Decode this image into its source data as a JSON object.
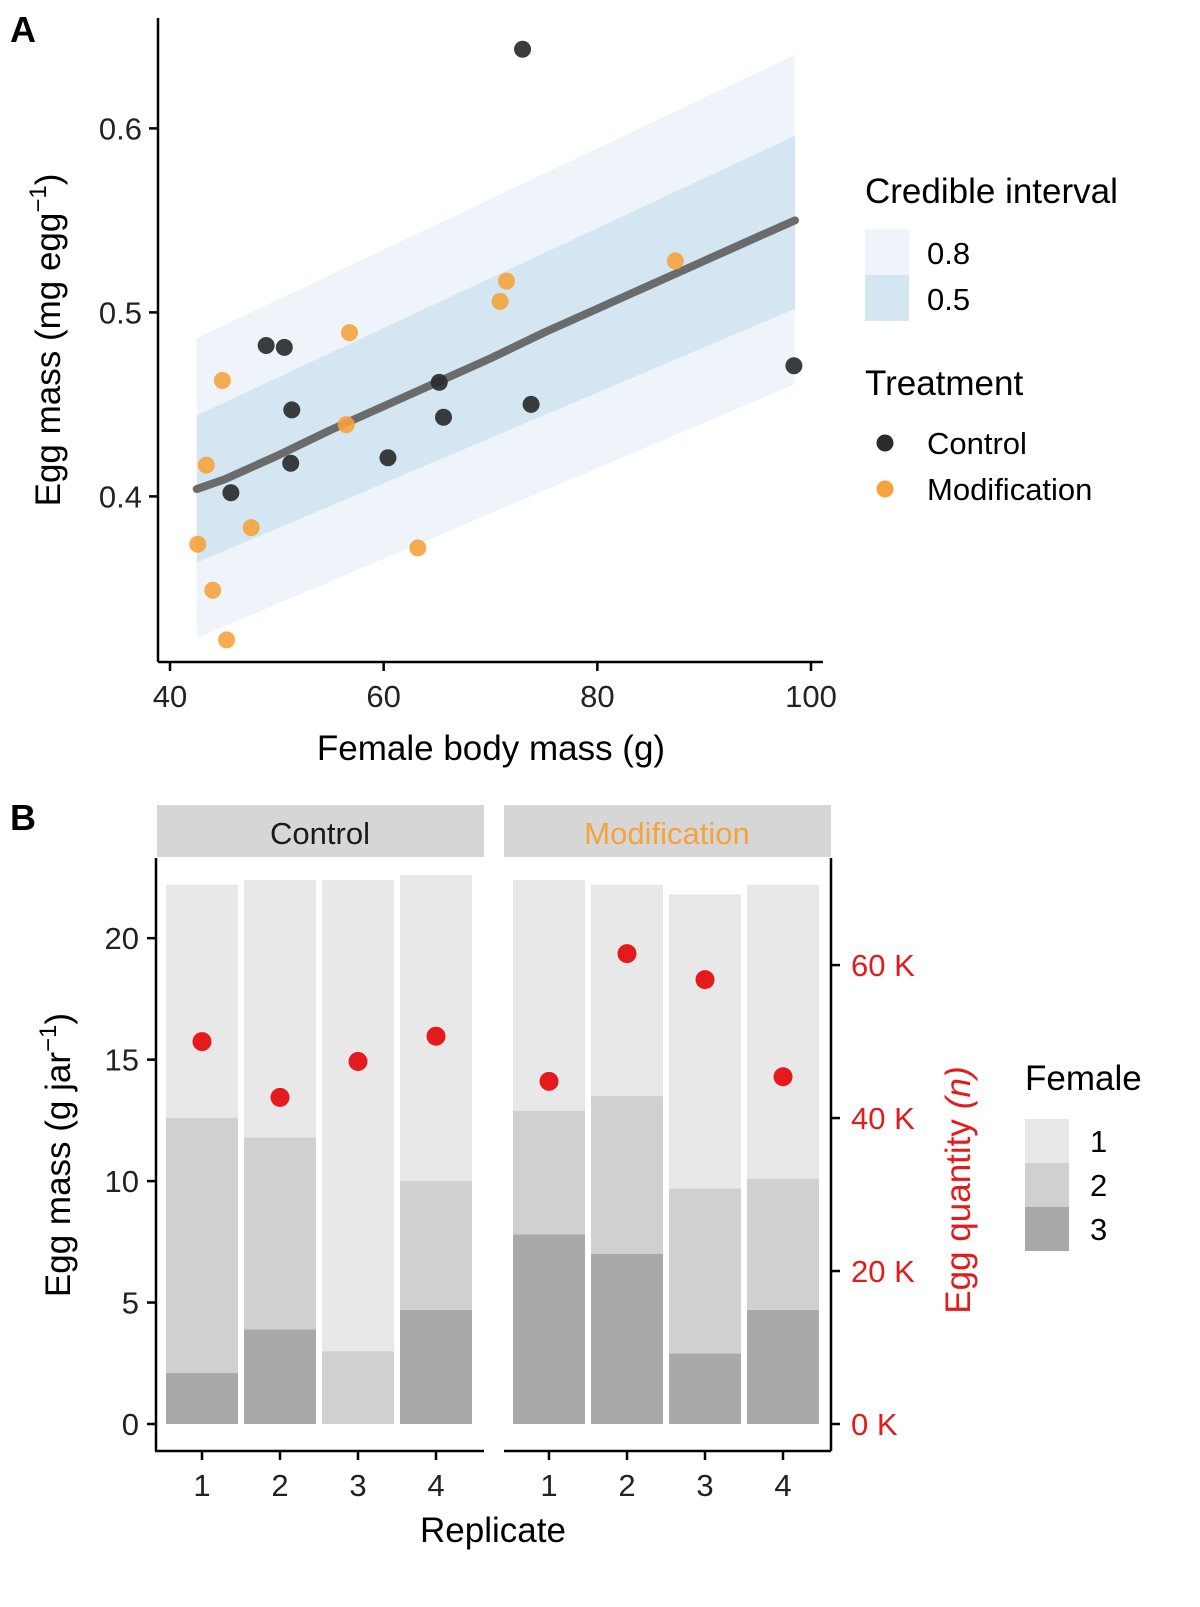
{
  "panel_a": {
    "label": "A",
    "chart_data": {
      "type": "scatter",
      "xlabel": "Female body mass (g)",
      "ylabel": "Egg mass (mg egg",
      "ylabel_sup": "−1",
      "ylabel_close": ")",
      "xlim": [
        40,
        100
      ],
      "ylim": [
        0.31,
        0.66
      ],
      "xticks": [
        40,
        60,
        80,
        100
      ],
      "xtick_labels": [
        "40",
        "60",
        "80",
        "100"
      ],
      "yticks": [
        0.4,
        0.5,
        0.6
      ],
      "ytick_labels": [
        "0.4",
        "0.5",
        "0.6"
      ],
      "fit_line": {
        "x": [
          42.5,
          45,
          50,
          55,
          60,
          65,
          70,
          75,
          80,
          85,
          90,
          95,
          98.5
        ],
        "y": [
          0.404,
          0.409,
          0.422,
          0.436,
          0.449,
          0.462,
          0.475,
          0.489,
          0.502,
          0.515,
          0.528,
          0.541,
          0.55
        ]
      },
      "ci80": {
        "x": [
          42.5,
          98.5
        ],
        "lower": [
          0.323,
          0.461
        ],
        "upper": [
          0.486,
          0.64
        ]
      },
      "ci50": {
        "x": [
          42.5,
          98.5
        ],
        "lower": [
          0.364,
          0.502
        ],
        "upper": [
          0.444,
          0.596
        ]
      },
      "series": [
        {
          "name": "Control",
          "color": "#2b2b2b",
          "points": [
            {
              "x": 45.7,
              "y": 0.402
            },
            {
              "x": 49.0,
              "y": 0.482
            },
            {
              "x": 50.7,
              "y": 0.481
            },
            {
              "x": 51.4,
              "y": 0.447
            },
            {
              "x": 51.3,
              "y": 0.418
            },
            {
              "x": 60.4,
              "y": 0.421
            },
            {
              "x": 65.2,
              "y": 0.462
            },
            {
              "x": 65.6,
              "y": 0.443
            },
            {
              "x": 73.0,
              "y": 0.643
            },
            {
              "x": 73.8,
              "y": 0.45
            },
            {
              "x": 98.4,
              "y": 0.471
            }
          ]
        },
        {
          "name": "Modification",
          "color": "#f5a33c",
          "points": [
            {
              "x": 42.6,
              "y": 0.374
            },
            {
              "x": 43.4,
              "y": 0.417
            },
            {
              "x": 44.0,
              "y": 0.349
            },
            {
              "x": 44.9,
              "y": 0.463
            },
            {
              "x": 45.3,
              "y": 0.322
            },
            {
              "x": 47.6,
              "y": 0.383
            },
            {
              "x": 56.5,
              "y": 0.439
            },
            {
              "x": 56.8,
              "y": 0.489
            },
            {
              "x": 63.2,
              "y": 0.372
            },
            {
              "x": 70.9,
              "y": 0.506
            },
            {
              "x": 71.5,
              "y": 0.517
            },
            {
              "x": 87.3,
              "y": 0.528
            }
          ]
        }
      ],
      "legend": {
        "ci_title": "Credible interval",
        "ci_items": [
          {
            "label": "0.8",
            "color": "#eef4fa"
          },
          {
            "label": "0.5",
            "color": "#d3e6f1"
          }
        ],
        "treatment_title": "Treatment",
        "placement": "right"
      }
    }
  },
  "panel_b": {
    "label": "B",
    "chart_data": {
      "type": "bar",
      "xlabel": "Replicate",
      "ylabel": "Egg mass (g jar",
      "ylabel_sup": "−1",
      "ylabel_close": ")",
      "y2label": "Egg quantity",
      "y2label_italic": "n",
      "ylim": [
        0,
        23.3
      ],
      "y2lim": [
        0,
        74000
      ],
      "yticks": [
        0,
        5,
        10,
        15,
        20
      ],
      "ytick_labels": [
        "0",
        "5",
        "10",
        "15",
        "20"
      ],
      "y2ticks": [
        0,
        20000,
        40000,
        60000
      ],
      "y2tick_labels": [
        "0 K",
        "20 K",
        "40 K",
        "60 K"
      ],
      "y2_color": "#e41a1c",
      "categories": [
        "1",
        "2",
        "3",
        "4"
      ],
      "female_colors": {
        "1": "#e8e8e8",
        "2": "#d0d0d0",
        "3": "#a9a9a9"
      },
      "facets": [
        {
          "name": "Control",
          "name_color": "#1a1a1a",
          "bars": [
            {
              "female3": 2.1,
              "female2": 10.5,
              "female1": 9.6
            },
            {
              "female3": 3.9,
              "female2": 7.9,
              "female1": 10.6
            },
            {
              "female3": 0,
              "female2": 3.0,
              "female1": 19.4
            },
            {
              "female3": 4.7,
              "female2": 5.3,
              "female1": 12.6
            }
          ],
          "quantity": [
            50000,
            42700,
            47400,
            50700
          ]
        },
        {
          "name": "Modification",
          "name_color": "#f5a33c",
          "bars": [
            {
              "female3": 7.8,
              "female2": 5.1,
              "female1": 9.5
            },
            {
              "female3": 7.0,
              "female2": 6.5,
              "female1": 8.7
            },
            {
              "female3": 2.9,
              "female2": 6.8,
              "female1": 12.1
            },
            {
              "female3": 4.7,
              "female2": 5.4,
              "female1": 12.1
            }
          ],
          "quantity": [
            44800,
            61500,
            58100,
            45400
          ]
        }
      ],
      "legend": {
        "title": "Female",
        "items": [
          {
            "label": "1",
            "color": "#e8e8e8"
          },
          {
            "label": "2",
            "color": "#d0d0d0"
          },
          {
            "label": "3",
            "color": "#a9a9a9"
          }
        ],
        "placement": "right"
      }
    }
  }
}
